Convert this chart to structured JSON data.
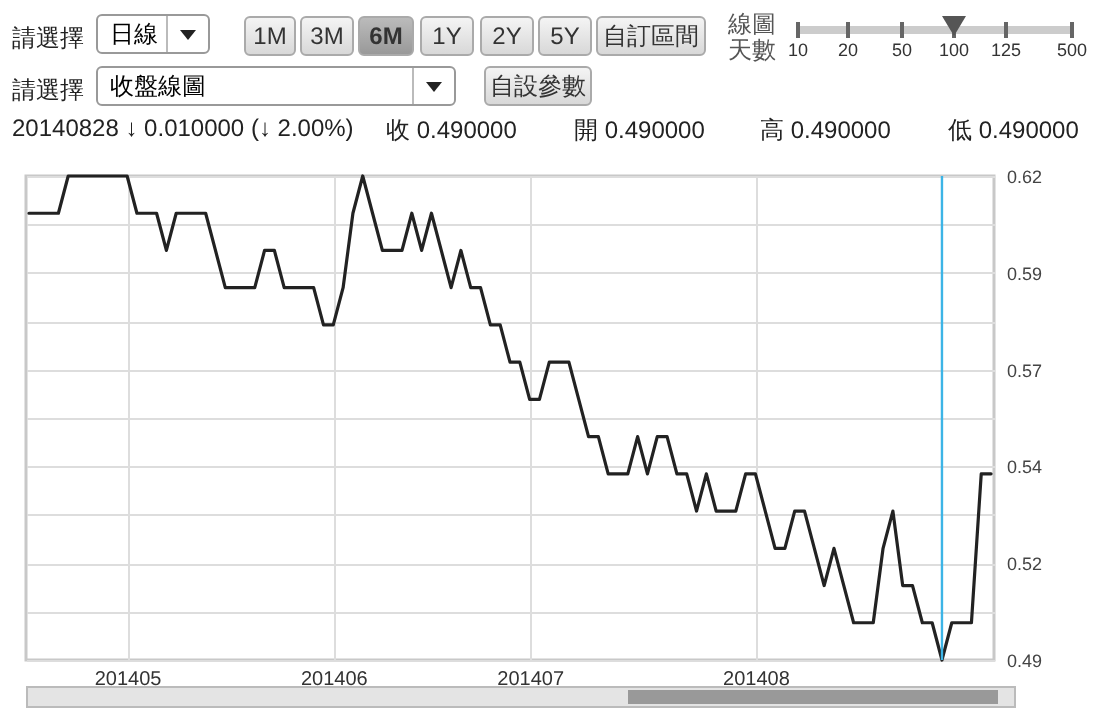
{
  "chart_data": {
    "type": "line",
    "categories": [
      null,
      null,
      null,
      null,
      null,
      null,
      null,
      null,
      null,
      null,
      "201405",
      null,
      null,
      null,
      null,
      null,
      null,
      null,
      null,
      null,
      null,
      null,
      null,
      null,
      null,
      null,
      null,
      null,
      null,
      null,
      null,
      "201406",
      null,
      null,
      null,
      null,
      null,
      null,
      null,
      null,
      null,
      null,
      null,
      null,
      null,
      null,
      null,
      null,
      null,
      null,
      null,
      "201407",
      null,
      null,
      null,
      null,
      null,
      null,
      null,
      null,
      null,
      null,
      null,
      null,
      null,
      null,
      null,
      null,
      null,
      null,
      null,
      null,
      null,
      null,
      "201408",
      null,
      null,
      null,
      null,
      null,
      null,
      null,
      null,
      null,
      null,
      null,
      null,
      null,
      null,
      null,
      null,
      null,
      null,
      null,
      null,
      null,
      null,
      null,
      null
    ],
    "series": [
      {
        "color": "#222222",
        "values": [
          0.61,
          0.61,
          0.61,
          0.61,
          0.62,
          0.62,
          0.62,
          0.62,
          0.62,
          0.62,
          0.62,
          0.61,
          0.61,
          0.61,
          0.6,
          0.61,
          0.61,
          0.61,
          0.61,
          0.6,
          0.59,
          0.59,
          0.59,
          0.59,
          0.6,
          0.6,
          0.59,
          0.59,
          0.59,
          0.59,
          0.58,
          0.58,
          0.59,
          0.61,
          0.62,
          0.61,
          0.6,
          0.6,
          0.6,
          0.61,
          0.6,
          0.61,
          0.6,
          0.59,
          0.6,
          0.59,
          0.59,
          0.58,
          0.58,
          0.57,
          0.57,
          0.56,
          0.56,
          0.57,
          0.57,
          0.57,
          0.56,
          0.55,
          0.55,
          0.54,
          0.54,
          0.54,
          0.55,
          0.54,
          0.55,
          0.55,
          0.54,
          0.54,
          0.53,
          0.54,
          0.53,
          0.53,
          0.53,
          0.54,
          0.54,
          0.53,
          0.52,
          0.52,
          0.53,
          0.53,
          0.52,
          0.51,
          0.52,
          0.51,
          0.5,
          0.5,
          0.5,
          0.52,
          0.53,
          0.51,
          0.51,
          0.5,
          0.5,
          0.49,
          0.5,
          0.5,
          0.5,
          0.54,
          0.54
        ]
      }
    ],
    "ylim": [
      0.49,
      0.62
    ],
    "yticks": [
      0.49,
      {
        "value": 0.503,
        "label": null
      },
      {
        "value": 0.516,
        "label": "0.52"
      },
      {
        "value": 0.529,
        "label": null
      },
      {
        "value": 0.542,
        "label": "0.54"
      },
      {
        "value": 0.555,
        "label": null
      },
      {
        "value": 0.568,
        "label": "0.57"
      },
      {
        "value": 0.581,
        "label": null
      },
      {
        "value": 0.594,
        "label": "0.59"
      },
      {
        "value": 0.607,
        "label": null
      },
      0.62
    ],
    "grid": true,
    "annotations": [
      "請選擇",
      "日線",
      "1M",
      "3M",
      "6M",
      "1Y",
      "2Y",
      "5Y",
      "自訂區間",
      "線圖天數",
      "10",
      "20",
      "50",
      "100",
      "125",
      "500",
      "請選擇",
      "收盤線圖",
      "自設參數",
      "20140828 ↓ 0.010000 (↓ 2.00%)",
      "收 0.490000",
      "開 0.490000",
      "高 0.490000",
      "低 0.490000"
    ]
  }
}
